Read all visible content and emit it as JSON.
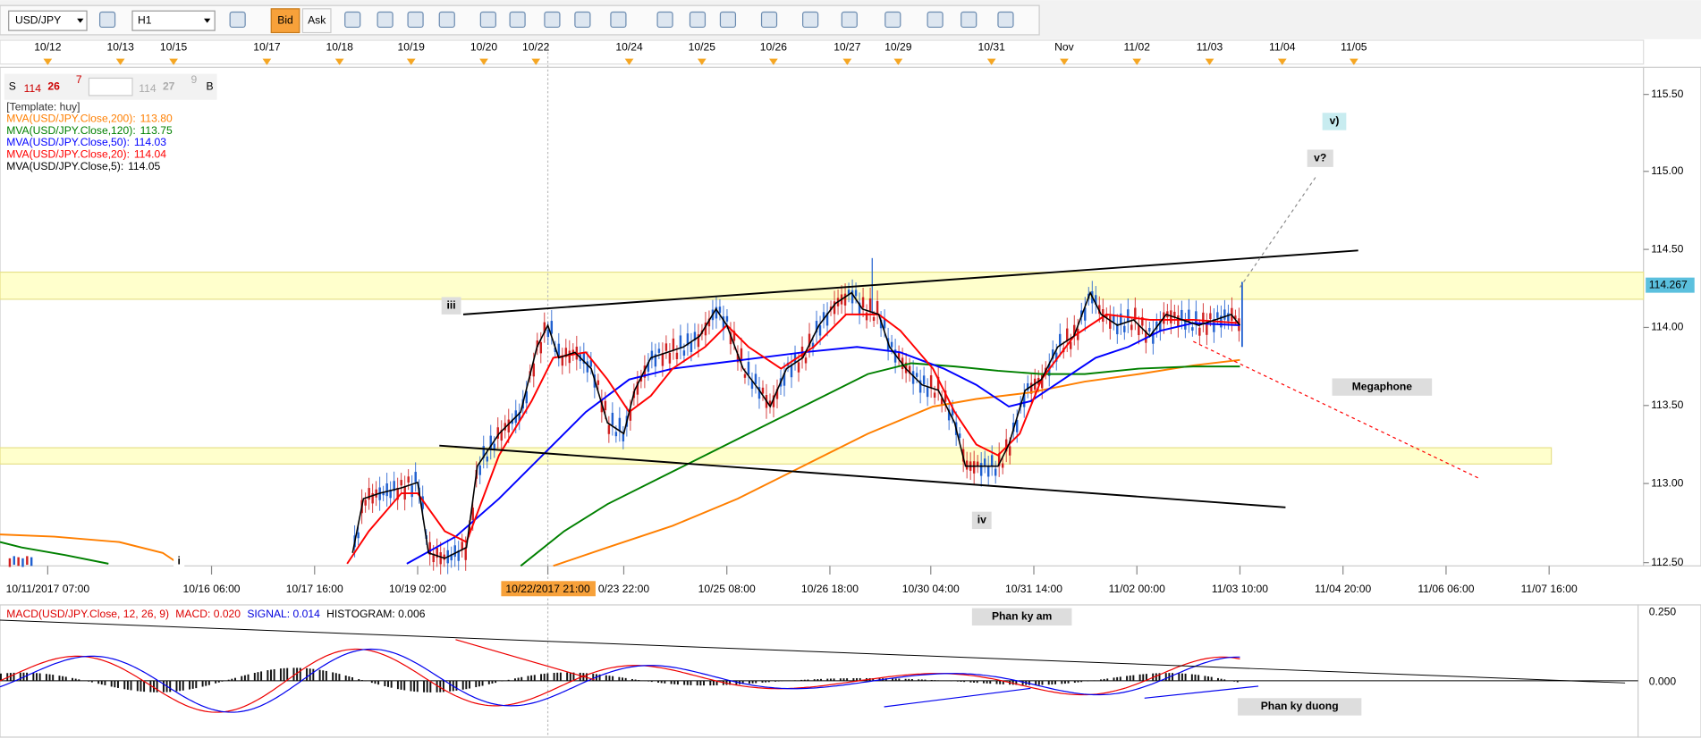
{
  "toolbar": {
    "symbol": "USD/JPY",
    "timeframe": "H1",
    "bid": "Bid",
    "ask": "Ask"
  },
  "top_axis": [
    "10/12",
    "10/13",
    "10/15",
    "10/17",
    "10/18",
    "10/19",
    "10/20",
    "10/22",
    "10/24",
    "10/25",
    "10/26",
    "10/27",
    "10/29",
    "10/31",
    "Nov",
    "11/02",
    "11/03",
    "11/04",
    "11/05"
  ],
  "price_axis": [
    "115.50",
    "115.00",
    "114.50",
    "114.00",
    "113.50",
    "113.00",
    "112.50"
  ],
  "current_price": "114.267",
  "time_axis": [
    "10/11/2017 07:00",
    "10/16 06:00",
    "10/17 16:00",
    "10/19 02:00",
    "10/22/2017 21:00",
    "0/23 22:00",
    "10/25 08:00",
    "10/26 18:00",
    "10/30 04:00",
    "10/31 14:00",
    "11/02 00:00",
    "11/03 10:00",
    "11/04 20:00",
    "11/06 06:00",
    "11/07 16:00"
  ],
  "quote": {
    "s": "S",
    "bid_big": "114",
    "bid_pips": "26",
    "bid_frac": "7",
    "ask_big": "114",
    "ask_pips": "27",
    "ask_frac": "9",
    "b": "B"
  },
  "legend": {
    "template": "[Template: huy]",
    "lines": [
      {
        "label": "MVA(USD/JPY.Close,200):",
        "value": "113.80",
        "color": "#ff7f00"
      },
      {
        "label": "MVA(USD/JPY.Close,120):",
        "value": "113.75",
        "color": "#008000"
      },
      {
        "label": "MVA(USD/JPY.Close,50):",
        "value": "114.03",
        "color": "#0000ff"
      },
      {
        "label": "MVA(USD/JPY.Close,20):",
        "value": "114.04",
        "color": "#ff0000"
      },
      {
        "label": "MVA(USD/JPY.Close,5):",
        "value": "114.05",
        "color": "#000000"
      }
    ]
  },
  "annotations": {
    "wave_v": "v)",
    "wave_v_q": "v?",
    "wave_iii": "iii",
    "wave_iv": "iv",
    "wave_i": "i",
    "megaphone": "Megaphone",
    "phan_ky_am": "Phan ky am",
    "phan_ky_duong": "Phan ky duong"
  },
  "macd": {
    "title": "MACD(USD/JPY.Close, 12, 26, 9)",
    "macd": "MACD: 0.020",
    "signal": "SIGNAL: 0.014",
    "histogram": "HISTOGRAM: 0.006",
    "axis": [
      "0.250",
      "0.000"
    ]
  }
}
